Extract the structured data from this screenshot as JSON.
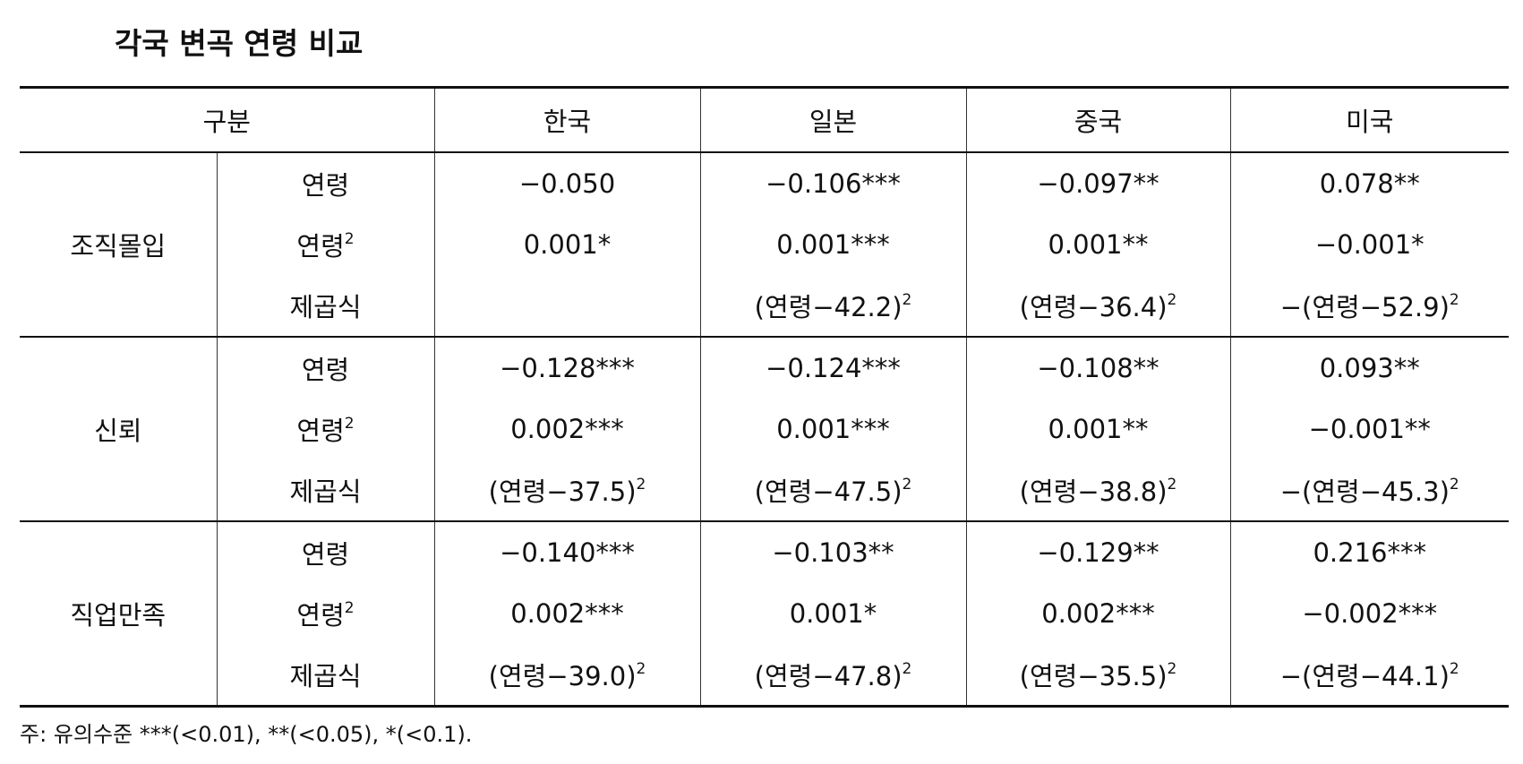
{
  "title": "각국 변곡 연령 비교",
  "table": {
    "header": [
      "구분",
      "한국",
      "일본",
      "중국",
      "미국"
    ],
    "groups": [
      {
        "label": "조직몰입",
        "rows": [
          {
            "label": "연령",
            "cells": [
              "−0.050",
              "−0.106***",
              "−0.097**",
              "0.078**"
            ]
          },
          {
            "label": {
              "text": "연령",
              "sup": "2"
            },
            "cells": [
              "0.001*",
              "0.001***",
              "0.001**",
              "−0.001*"
            ]
          },
          {
            "label": "제곱식",
            "cells": [
              null,
              {
                "text": "(연령−42.2)",
                "sup": "2"
              },
              {
                "text": "(연령−36.4)",
                "sup": "2"
              },
              {
                "text": "−(연령−52.9)",
                "sup": "2"
              }
            ]
          }
        ]
      },
      {
        "label": "신뢰",
        "rows": [
          {
            "label": "연령",
            "cells": [
              "−0.128***",
              "−0.124***",
              "−0.108**",
              "0.093**"
            ]
          },
          {
            "label": {
              "text": "연령",
              "sup": "2"
            },
            "cells": [
              "0.002***",
              "0.001***",
              "0.001**",
              "−0.001**"
            ]
          },
          {
            "label": "제곱식",
            "cells": [
              {
                "text": "(연령−37.5)",
                "sup": "2"
              },
              {
                "text": "(연령−47.5)",
                "sup": "2"
              },
              {
                "text": "(연령−38.8)",
                "sup": "2"
              },
              {
                "text": "−(연령−45.3)",
                "sup": "2"
              }
            ]
          }
        ]
      },
      {
        "label": "직업만족",
        "rows": [
          {
            "label": "연령",
            "cells": [
              "−0.140***",
              "−0.103**",
              "−0.129**",
              "0.216***"
            ]
          },
          {
            "label": {
              "text": "연령",
              "sup": "2"
            },
            "cells": [
              "0.002***",
              "0.001*",
              "0.002***",
              "−0.002***"
            ]
          },
          {
            "label": "제곱식",
            "cells": [
              {
                "text": "(연령−39.0)",
                "sup": "2"
              },
              {
                "text": "(연령−47.8)",
                "sup": "2"
              },
              {
                "text": "(연령−35.5)",
                "sup": "2"
              },
              {
                "text": "−(연령−44.1)",
                "sup": "2"
              }
            ]
          }
        ]
      }
    ]
  },
  "note": "주: 유의수준 ***(<0.01), **(<0.05), *(<0.1)."
}
